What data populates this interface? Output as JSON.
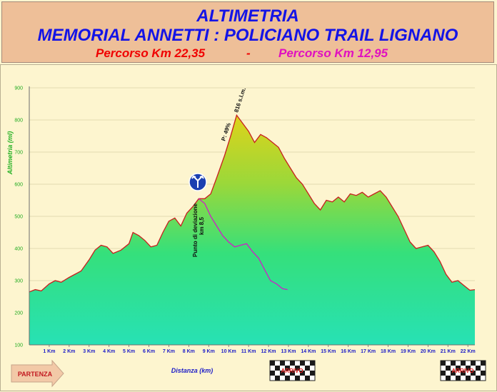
{
  "header": {
    "title_line1": "ALTIMETRIA",
    "title_line2": "MEMORIAL ANNETTI : POLICIANO TRAIL LIGNANO",
    "route_long": "Percorso Km 22,35",
    "separator": "-",
    "route_short": "Percorso Km 12,95",
    "colors": {
      "title": "#1414e6",
      "route_long": "#f00000",
      "route_short": "#e010c0",
      "background": "#eebf98"
    }
  },
  "chart_data": {
    "type": "area",
    "ylabel": "Altimetria (ml)",
    "xlabel": "Distanza (km)",
    "ylim": [
      100,
      900
    ],
    "xlim": [
      0,
      22.35
    ],
    "yticks": [
      "100",
      "200",
      "300",
      "400",
      "500",
      "600",
      "700",
      "800",
      "900"
    ],
    "xticks": [
      "1 Km",
      "2 Km",
      "3 Km",
      "4 Km",
      "5 Km",
      "6 Km",
      "7 Km",
      "8 Km",
      "9 Km",
      "10 Km",
      "11 Km",
      "12 Km",
      "13 Km",
      "14 Km",
      "15 Km",
      "16 Km",
      "17 Km",
      "18 Km",
      "19 Km",
      "20 Km",
      "21 Km",
      "22 Km"
    ],
    "grid": true,
    "series": [
      {
        "color": "#c81e1e",
        "x": [
          0,
          0.3,
          0.6,
          1.0,
          1.3,
          1.6,
          2.0,
          2.3,
          2.6,
          3.0,
          3.3,
          3.6,
          3.9,
          4.2,
          4.6,
          5.0,
          5.2,
          5.5,
          5.8,
          6.1,
          6.4,
          6.7,
          7.0,
          7.3,
          7.6,
          7.9,
          8.2,
          8.5,
          8.8,
          9.1,
          9.4,
          9.8,
          10.1,
          10.4,
          10.7,
          11.0,
          11.3,
          11.6,
          11.9,
          12.2,
          12.5,
          12.8,
          13.1,
          13.4,
          13.7,
          14.0,
          14.3,
          14.6,
          14.9,
          15.2,
          15.5,
          15.8,
          16.1,
          16.4,
          16.7,
          17.0,
          17.3,
          17.6,
          17.9,
          18.2,
          18.5,
          18.8,
          19.1,
          19.4,
          19.7,
          20.0,
          20.3,
          20.6,
          20.9,
          21.2,
          21.5,
          21.8,
          22.1,
          22.35
        ],
        "y": [
          265,
          272,
          268,
          290,
          300,
          295,
          310,
          320,
          330,
          365,
          395,
          410,
          405,
          385,
          395,
          415,
          450,
          440,
          425,
          405,
          410,
          450,
          485,
          495,
          470,
          510,
          530,
          555,
          555,
          570,
          620,
          690,
          750,
          815,
          790,
          765,
          730,
          755,
          745,
          730,
          715,
          680,
          650,
          620,
          600,
          570,
          540,
          520,
          550,
          545,
          560,
          545,
          570,
          565,
          575,
          560,
          570,
          580,
          560,
          530,
          500,
          460,
          420,
          400,
          405,
          410,
          390,
          360,
          320,
          295,
          300,
          285,
          270,
          272
        ]
      },
      {
        "color": "#d01cc8",
        "x": [
          8.5,
          8.8,
          9.1,
          9.4,
          9.7,
          10.0,
          10.3,
          10.6,
          10.9,
          11.2,
          11.5,
          11.8,
          12.1,
          12.4,
          12.7,
          12.95
        ],
        "y": [
          555,
          540,
          500,
          470,
          440,
          420,
          405,
          410,
          415,
          390,
          370,
          335,
          300,
          290,
          275,
          272
        ]
      }
    ]
  },
  "annotations": {
    "summit": "816 s.l.m.",
    "slope": "P: 49%",
    "deviation_line1": "Punto di deviazione",
    "deviation_line2": "km 8,5"
  },
  "start_label": "PARTENZA",
  "finish_label": "ARRIVO"
}
